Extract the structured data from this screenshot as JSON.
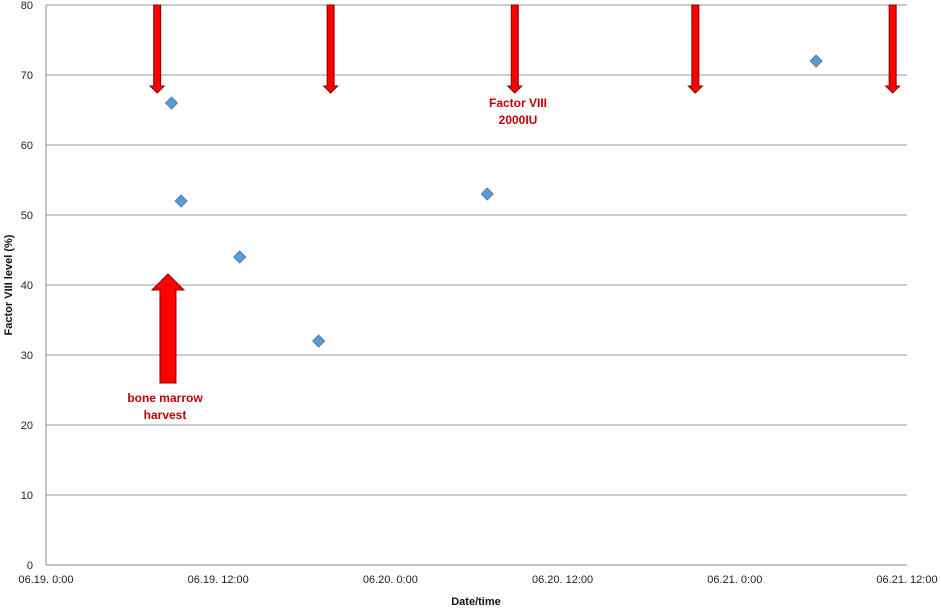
{
  "chart_data": {
    "type": "scatter",
    "title": "",
    "xlabel": "Date/time",
    "ylabel": "Factor VIII level (%)",
    "ylim": [
      0,
      80
    ],
    "yticks": [
      0,
      10,
      20,
      30,
      40,
      50,
      60,
      70,
      80
    ],
    "xlim": [
      "2000-06-19T00:00",
      "2000-06-21T12:00"
    ],
    "xticks": [
      {
        "at": "2000-06-19T00:00",
        "label": "06.19. 0:00"
      },
      {
        "at": "2000-06-19T12:00",
        "label": "06.19. 12:00"
      },
      {
        "at": "2000-06-20T00:00",
        "label": "06.20. 0:00"
      },
      {
        "at": "2000-06-20T12:00",
        "label": "06.20. 12:00"
      },
      {
        "at": "2000-06-21T00:00",
        "label": "06.21. 0:00"
      },
      {
        "at": "2000-06-21T12:00",
        "label": "06.21. 12:00"
      }
    ],
    "grid": "horizontal",
    "marker_color": "#5b9bd5",
    "marker_stroke": "#41719c",
    "arrow_color": "#ff0000",
    "arrow_stroke": "#7f0000",
    "annotation_color": "#c00000",
    "points": [
      {
        "x": "2000-06-19T08:45",
        "y": 66
      },
      {
        "x": "2000-06-19T09:25",
        "y": 52
      },
      {
        "x": "2000-06-19T13:30",
        "y": 44
      },
      {
        "x": "2000-06-19T19:00",
        "y": 32
      },
      {
        "x": "2000-06-20T06:45",
        "y": 53
      },
      {
        "x": "2000-06-21T05:40",
        "y": 72
      }
    ],
    "dose_arrows": [
      {
        "x": "2000-06-19T07:45"
      },
      {
        "x": "2000-06-19T19:50"
      },
      {
        "x": "2000-06-20T08:40"
      },
      {
        "x": "2000-06-20T21:15"
      },
      {
        "x": "2000-06-21T11:00"
      }
    ],
    "harvest_arrow": {
      "x": "2000-06-19T08:30"
    },
    "annotations": {
      "dose_line1": "Factor VIII",
      "dose_line2": "2000IU",
      "harvest_line1": "bone marrow",
      "harvest_line2": "harvest"
    }
  }
}
